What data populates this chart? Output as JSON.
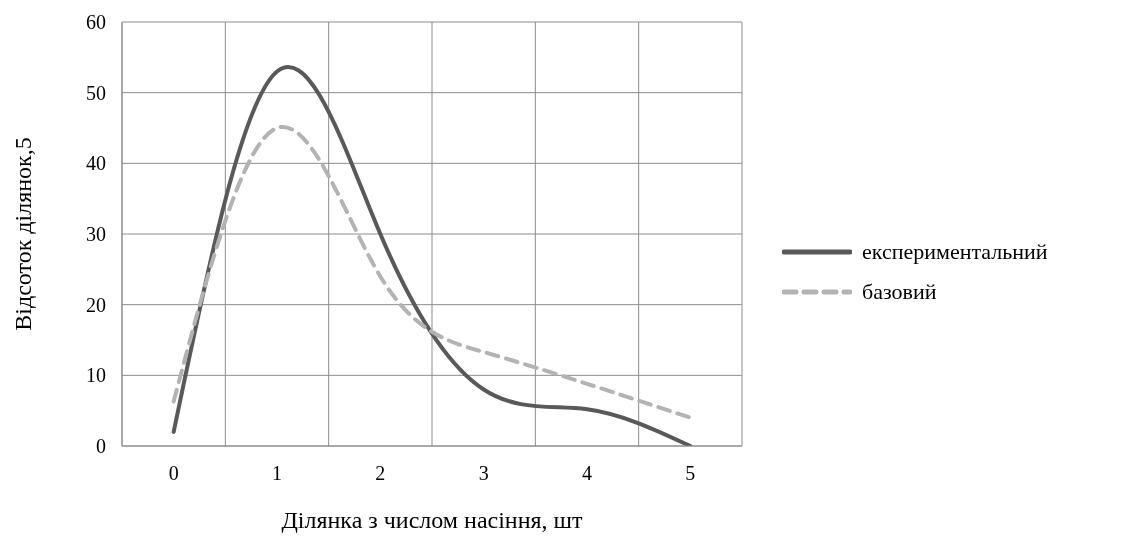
{
  "chart_data": {
    "type": "line",
    "xlabel": "Ділянка з числом насіння, шт",
    "ylabel": "Відсоток ділянок,5",
    "categories": [
      "0",
      "1",
      "2",
      "3",
      "4",
      "5"
    ],
    "series": [
      {
        "name": "експериментальний",
        "color": "#595959",
        "line_style": "solid",
        "values": [
          2,
          53,
          30,
          8,
          5.2,
          0
        ]
      },
      {
        "name": "базовий",
        "color": "#b3b3b3",
        "line_style": "dashed",
        "values": [
          6.3,
          45,
          24,
          13.3,
          8.8,
          4
        ]
      }
    ],
    "ylim": [
      0,
      60
    ],
    "yticks": [
      0,
      10,
      20,
      30,
      40,
      50,
      60
    ],
    "grid": true,
    "legend": "right",
    "marker": "none"
  }
}
